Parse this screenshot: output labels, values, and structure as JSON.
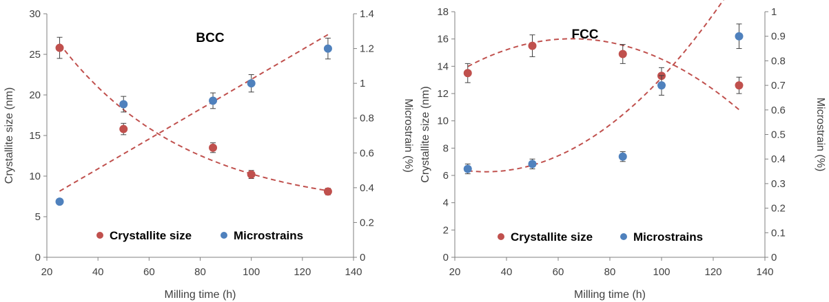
{
  "chart_data": [
    {
      "type": "scatter",
      "title": "BCC",
      "xlabel": "Milling time (h)",
      "ylabel": "Crystallite size (nm)",
      "y2label": "Microstrain (%)",
      "xlim": [
        20,
        140
      ],
      "x_ticks": [
        "20",
        "40",
        "60",
        "80",
        "100",
        "120",
        "140"
      ],
      "ylim": [
        0,
        30
      ],
      "y_ticks": [
        "0",
        "5",
        "10",
        "15",
        "20",
        "25",
        "30"
      ],
      "y2lim": [
        0,
        1.4
      ],
      "y2_ticks": [
        "0",
        "0.2",
        "0.4",
        "0.6",
        "0.8",
        "1",
        "1.2",
        "1.4"
      ],
      "legend_position": "bottom",
      "series": [
        {
          "name": "Crystallite size",
          "axis": "left",
          "color": "#c0504d",
          "x": [
            25,
            50,
            85,
            100,
            130
          ],
          "y": [
            25.8,
            15.8,
            13.5,
            10.2,
            8.1
          ],
          "error": [
            1.3,
            0.7,
            0.6,
            0.5,
            0.4
          ],
          "trend": {
            "x0": 25,
            "x1": 130,
            "y0": 26.3,
            "y1": 8.2,
            "k": 0.02
          }
        },
        {
          "name": "Microstrains",
          "axis": "right",
          "color": "#4f81bd",
          "x": [
            25,
            50,
            85,
            100,
            130
          ],
          "y": [
            0.32,
            0.88,
            0.9,
            1.0,
            1.2
          ],
          "error": [
            0.0,
            0.045,
            0.045,
            0.05,
            0.06
          ],
          "trend": {
            "x0": 25,
            "x1": 130,
            "y0": 0.38,
            "y1": 1.28
          }
        }
      ]
    },
    {
      "type": "scatter",
      "title": "FCC",
      "xlabel": "Milling time (h)",
      "ylabel": "Crystallite size (nm)",
      "y2label": "Microstrain (%)",
      "xlim": [
        20,
        140
      ],
      "x_ticks": [
        "20",
        "40",
        "60",
        "80",
        "100",
        "120",
        "140"
      ],
      "ylim": [
        0,
        18
      ],
      "y_ticks": [
        "0",
        "2",
        "4",
        "6",
        "8",
        "10",
        "12",
        "14",
        "16",
        "18"
      ],
      "y2lim": [
        0,
        1
      ],
      "y2_ticks": [
        "0",
        "0.1",
        "0.2",
        "0.3",
        "0.4",
        "0.5",
        "0.6",
        "0.7",
        "0.8",
        "0.9",
        "1"
      ],
      "legend_position": "bottom",
      "series": [
        {
          "name": "Crystallite size",
          "axis": "left",
          "color": "#c0504d",
          "x": [
            25,
            50,
            85,
            100,
            130
          ],
          "y": [
            13.5,
            15.5,
            14.9,
            13.3,
            12.6
          ],
          "error": [
            0.7,
            0.8,
            0.7,
            0.6,
            0.6
          ],
          "trend": {
            "poly": [
              10.68,
              0.1632,
              -0.0012475
            ],
            "x0": 25,
            "x1": 130
          }
        },
        {
          "name": "Microstrains",
          "axis": "right",
          "color": "#4f81bd",
          "x": [
            25,
            50,
            85,
            100,
            130
          ],
          "y": [
            0.36,
            0.38,
            0.41,
            0.7,
            0.9
          ],
          "error": [
            0.02,
            0.02,
            0.02,
            0.04,
            0.05
          ],
          "trend": {
            "poly": [
              0.433,
              -0.0053,
              8.28e-05
            ],
            "x0": 25,
            "x1": 130
          }
        }
      ]
    }
  ]
}
